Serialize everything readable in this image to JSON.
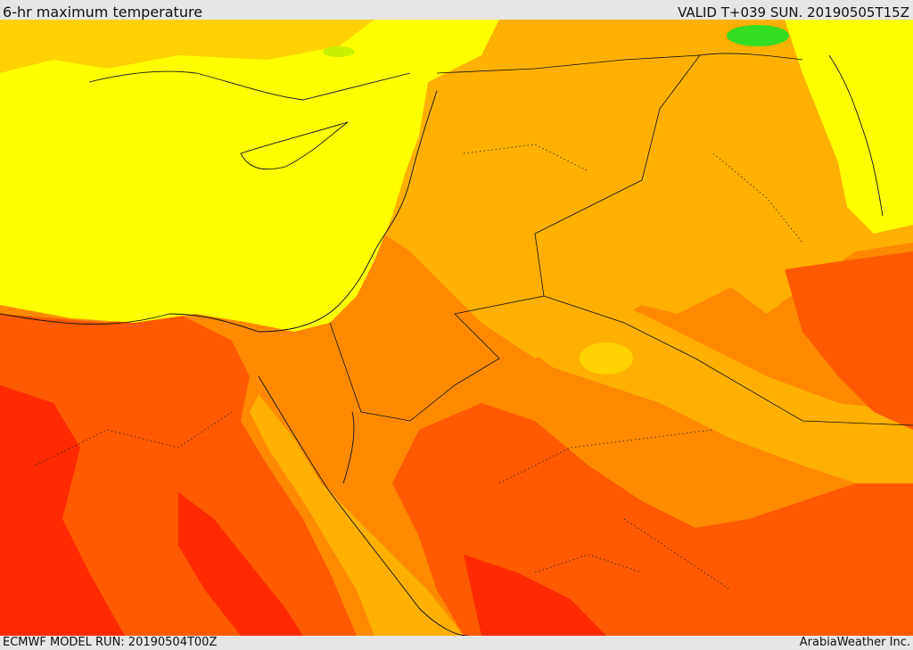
{
  "header": {
    "title": "6-hr maximum temperature",
    "valid_time": "VALID T+039 SUN. 20190505T15Z"
  },
  "footer": {
    "model_run": "ECMWF MODEL RUN: 20190504T00Z",
    "credit": "ArabiaWeather Inc."
  },
  "map": {
    "palette": {
      "green": "#33dd22",
      "yellow_green": "#c8f000",
      "yellow": "#ffff00",
      "yellow_orange": "#ffd200",
      "light_orange": "#ffb000",
      "orange": "#ff8a00",
      "dark_orange": "#ff5a00",
      "red": "#ff2a00",
      "sea_yellow": "#ffd400"
    }
  }
}
